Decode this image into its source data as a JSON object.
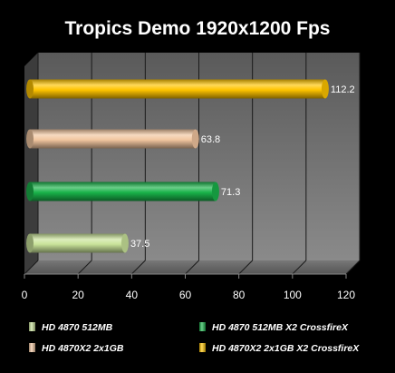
{
  "chart_data": {
    "type": "bar",
    "orientation": "horizontal",
    "style": "3d-cylinder",
    "title": "Tropics Demo 1920x1200 Fps",
    "xlabel": "",
    "ylabel": "",
    "xlim": [
      0,
      120
    ],
    "ticks": [
      0,
      20,
      40,
      60,
      80,
      100,
      120
    ],
    "grid": true,
    "legend_position": "bottom",
    "series": [
      {
        "name": "HD 4870 512MB",
        "value": 37.5,
        "label": "37.5",
        "color": "#c9e39a"
      },
      {
        "name": "HD 4870X2 2x1GB",
        "value": 63.8,
        "label": "63.8",
        "color": "#f2c6a0"
      },
      {
        "name": "HD 4870 512MB X2 CrossfireX",
        "value": 71.3,
        "label": "71.3",
        "color": "#19b34a"
      },
      {
        "name": "HD 4870X2 2x1GB X2 CrossfireX",
        "value": 112.2,
        "label": "112.2",
        "color": "#ffc400"
      }
    ],
    "bar_order_top_to_bottom": [
      "HD 4870X2 2x1GB X2 CrossfireX",
      "HD 4870X2 2x1GB",
      "HD 4870 512MB X2 CrossfireX",
      "HD 4870 512MB"
    ],
    "legend_order": [
      "HD 4870 512MB",
      "HD 4870 512MB X2 CrossfireX",
      "HD 4870X2 2x1GB",
      "HD 4870X2 2x1GB X2 CrossfireX"
    ]
  }
}
